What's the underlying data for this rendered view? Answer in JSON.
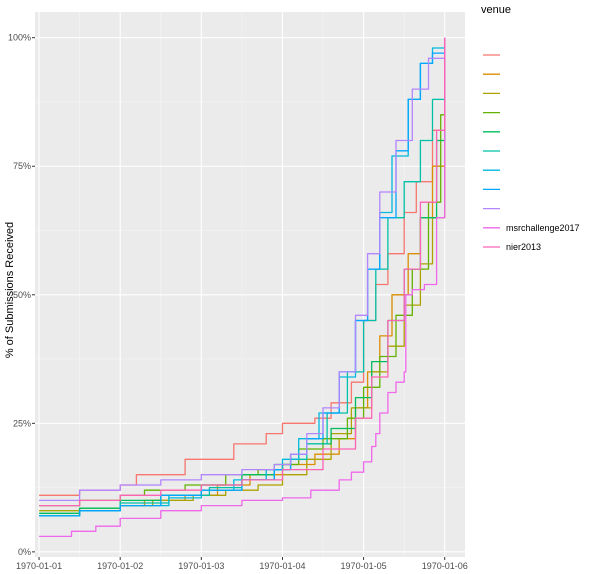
{
  "chart_data": {
    "type": "line",
    "title": "",
    "xlabel": "",
    "ylabel": "% of Submissions Received",
    "x_ticks": [
      "1970-01-01",
      "1970-01-02",
      "1970-01-03",
      "1970-01-04",
      "1970-01-05",
      "1970-01-06"
    ],
    "y_ticks": [
      "0%",
      "25%",
      "50%",
      "75%",
      "100%"
    ],
    "xlim": [
      -0.05,
      5.25
    ],
    "ylim": [
      -1,
      105
    ],
    "grid": true,
    "legend_title": "venue",
    "legend_position": "right",
    "series": [
      {
        "name": "",
        "color": "#F8766D",
        "x": [
          0,
          0.5,
          1.0,
          1.2,
          1.8,
          2.4,
          2.8,
          3.0,
          3.4,
          3.6,
          3.85,
          4.0,
          4.15,
          4.3,
          4.5,
          4.65,
          4.85,
          5.0
        ],
        "y": [
          11,
          12,
          13,
          15,
          18,
          21,
          23,
          25,
          26,
          29,
          33,
          45,
          52,
          58,
          66,
          72,
          82,
          100
        ]
      },
      {
        "name": "",
        "color": "#DB8E00",
        "x": [
          0,
          0.5,
          1.0,
          1.3,
          1.8,
          2.2,
          2.6,
          3.0,
          3.4,
          3.7,
          3.9,
          4.05,
          4.2,
          4.35,
          4.55,
          4.7,
          4.85,
          5.0
        ],
        "y": [
          7,
          8,
          9,
          10,
          11,
          13,
          15,
          17,
          19,
          22,
          28,
          35,
          42,
          50,
          58,
          65,
          75,
          100
        ]
      },
      {
        "name": "",
        "color": "#AEA200",
        "x": [
          0,
          0.5,
          1.0,
          1.4,
          1.9,
          2.3,
          2.7,
          3.0,
          3.3,
          3.6,
          3.85,
          4.1,
          4.3,
          4.5,
          4.7,
          4.85,
          5.0
        ],
        "y": [
          8,
          8.5,
          9,
          10,
          11,
          12,
          13,
          15,
          18,
          23,
          28,
          35,
          40,
          48,
          56,
          65,
          100
        ]
      },
      {
        "name": "",
        "color": "#64B200",
        "x": [
          0,
          0.5,
          1.0,
          1.3,
          1.8,
          2.3,
          2.7,
          3.0,
          3.2,
          3.5,
          3.8,
          4.0,
          4.2,
          4.4,
          4.6,
          4.8,
          4.95,
          5.0
        ],
        "y": [
          9,
          10,
          11,
          12,
          13,
          15,
          16,
          17,
          20,
          22,
          26,
          32,
          38,
          46,
          55,
          68,
          85,
          100
        ]
      },
      {
        "name": "",
        "color": "#00BD5C",
        "x": [
          0,
          0.5,
          1.0,
          1.5,
          2.0,
          2.5,
          2.9,
          3.1,
          3.3,
          3.6,
          3.9,
          4.1,
          4.3,
          4.5,
          4.7,
          4.9,
          5.0
        ],
        "y": [
          7.5,
          8.5,
          10,
          11,
          13,
          15,
          17,
          19,
          21,
          24,
          30,
          37,
          45,
          55,
          65,
          80,
          100
        ]
      },
      {
        "name": "",
        "color": "#00C1A7",
        "x": [
          0,
          0.5,
          1.0,
          1.6,
          2.1,
          2.5,
          2.9,
          3.1,
          3.3,
          3.55,
          3.8,
          4.0,
          4.15,
          4.3,
          4.5,
          4.7,
          4.85,
          5.0
        ],
        "y": [
          7,
          8,
          9.5,
          11,
          12.5,
          14,
          16,
          18,
          21,
          27,
          35,
          45,
          55,
          65,
          72,
          80,
          88,
          100
        ]
      },
      {
        "name": "",
        "color": "#00BADE",
        "x": [
          0,
          0.5,
          1.0,
          1.6,
          2.0,
          2.4,
          2.8,
          3.0,
          3.2,
          3.45,
          3.7,
          3.9,
          4.05,
          4.2,
          4.35,
          4.55,
          4.7,
          4.85,
          5.0
        ],
        "y": [
          7,
          8,
          9,
          10.5,
          12,
          14,
          16,
          18,
          22,
          27,
          34,
          45,
          55,
          66,
          77,
          88,
          95,
          98,
          100
        ]
      },
      {
        "name": "",
        "color": "#00A6FF",
        "x": [
          0,
          0.5,
          1.0,
          1.5,
          2.0,
          2.5,
          2.9,
          3.1,
          3.3,
          3.5,
          3.7,
          3.9,
          4.05,
          4.2,
          4.4,
          4.55,
          4.7,
          4.85,
          5.0
        ],
        "y": [
          7,
          8,
          9,
          11,
          12,
          14,
          16,
          19,
          22,
          27,
          35,
          45,
          55,
          65,
          78,
          88,
          95,
          97,
          100
        ]
      },
      {
        "name": "",
        "color": "#B385FF",
        "x": [
          0,
          0.5,
          1.0,
          1.5,
          2.0,
          2.5,
          2.9,
          3.1,
          3.3,
          3.5,
          3.7,
          3.9,
          4.05,
          4.2,
          4.4,
          4.6,
          4.8,
          5.0
        ],
        "y": [
          10,
          12,
          13,
          14,
          15,
          16,
          17,
          19,
          23,
          28,
          35,
          46,
          58,
          70,
          80,
          90,
          96,
          100
        ]
      },
      {
        "name": "msrchallenge2017",
        "color": "#EF67EB",
        "x": [
          0,
          0.4,
          0.7,
          1.0,
          1.5,
          2.0,
          2.5,
          3.0,
          3.35,
          3.7,
          3.85,
          4.0,
          4.1,
          4.15,
          4.2,
          4.3,
          4.4,
          4.5,
          4.52,
          4.6,
          4.75,
          4.9,
          5.0
        ],
        "y": [
          3,
          4,
          5,
          6.5,
          8,
          9,
          10,
          10.5,
          12,
          14,
          15.5,
          17.5,
          20.5,
          23,
          27,
          31,
          33,
          35,
          50,
          51,
          52,
          65,
          100
        ]
      },
      {
        "name": "nier2013",
        "color": "#FF63B6",
        "x": [
          0,
          0.5,
          1.0,
          1.5,
          2.0,
          2.5,
          3.0,
          3.5,
          3.9,
          4.1,
          4.3,
          4.5,
          4.7,
          4.9,
          5.0
        ],
        "y": [
          9,
          10,
          11,
          12,
          13,
          14,
          16,
          20,
          26,
          34,
          45,
          55,
          68,
          82,
          100
        ]
      }
    ]
  }
}
